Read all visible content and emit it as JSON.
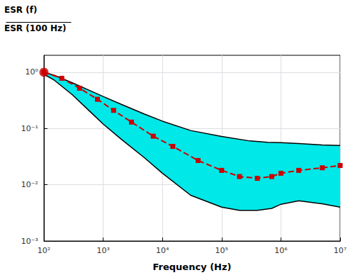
{
  "chart_data": {
    "type": "line",
    "xlabel": "Frequency (Hz)",
    "ylabel": [
      "ESR (f)",
      "ESR (100 Hz)"
    ],
    "log": true,
    "grid": true,
    "xlim": [
      100,
      10000000.0
    ],
    "ylim": [
      0.001,
      2.0
    ],
    "xticks": [
      {
        "value": 100,
        "label": "10²"
      },
      {
        "value": 1000,
        "label": "10³"
      },
      {
        "value": 10000,
        "label": "10⁴"
      },
      {
        "value": 100000,
        "label": "10⁵"
      },
      {
        "value": 1000000,
        "label": "10⁶"
      },
      {
        "value": 10000000,
        "label": "10⁷"
      }
    ],
    "yticks": [
      {
        "value": 0.001,
        "label": "10⁻³"
      },
      {
        "value": 0.01,
        "label": "10⁻²"
      },
      {
        "value": 0.1,
        "label": "10⁻¹"
      },
      {
        "value": 1,
        "label": "10⁰"
      }
    ],
    "series": [
      {
        "type": "band",
        "color": "#00e8e8",
        "edges": [
          {
            "color": "#000000",
            "x": [
              100,
              150,
              300,
              600,
              1000,
              2000,
              5000,
              10000.0,
              30000.0,
              100000.0,
              300000.0,
              600000.0,
              1000000.0,
              2000000.0,
              5000000.0,
              10000000.0
            ],
            "values": [
              1.0,
              0.88,
              0.65,
              0.47,
              0.37,
              0.27,
              0.18,
              0.135,
              0.092,
              0.072,
              0.06,
              0.057,
              0.056,
              0.054,
              0.051,
              0.05
            ]
          },
          {
            "color": "#000000",
            "x": [
              100,
              150,
              300,
              600,
              1000,
              2000,
              5000,
              10000.0,
              30000.0,
              100000.0,
              200000.0,
              400000.0,
              700000.0,
              1000000.0,
              2000000.0,
              5000000.0,
              10000000.0
            ],
            "values": [
              0.92,
              0.72,
              0.4,
              0.2,
              0.12,
              0.065,
              0.03,
              0.016,
              0.0065,
              0.004,
              0.0035,
              0.0035,
              0.0038,
              0.0045,
              0.0052,
              0.0046,
              0.004
            ]
          }
        ]
      },
      {
        "type": "line",
        "color": "#cc0000",
        "line_style": "dashed",
        "marker": "square",
        "x": [
          100,
          200,
          400,
          800,
          1500,
          3000,
          7000,
          15000.0,
          40000.0,
          100000.0,
          200000.0,
          400000.0,
          700000.0,
          1000000.0,
          2000000.0,
          5000000.0,
          10000000.0
        ],
        "values": [
          1.0,
          0.78,
          0.52,
          0.33,
          0.21,
          0.13,
          0.073,
          0.048,
          0.027,
          0.018,
          0.014,
          0.013,
          0.014,
          0.016,
          0.018,
          0.02,
          0.022
        ]
      },
      {
        "type": "scatter",
        "color": "#cc0000",
        "x": [
          100
        ],
        "values": [
          1.0
        ]
      }
    ]
  }
}
